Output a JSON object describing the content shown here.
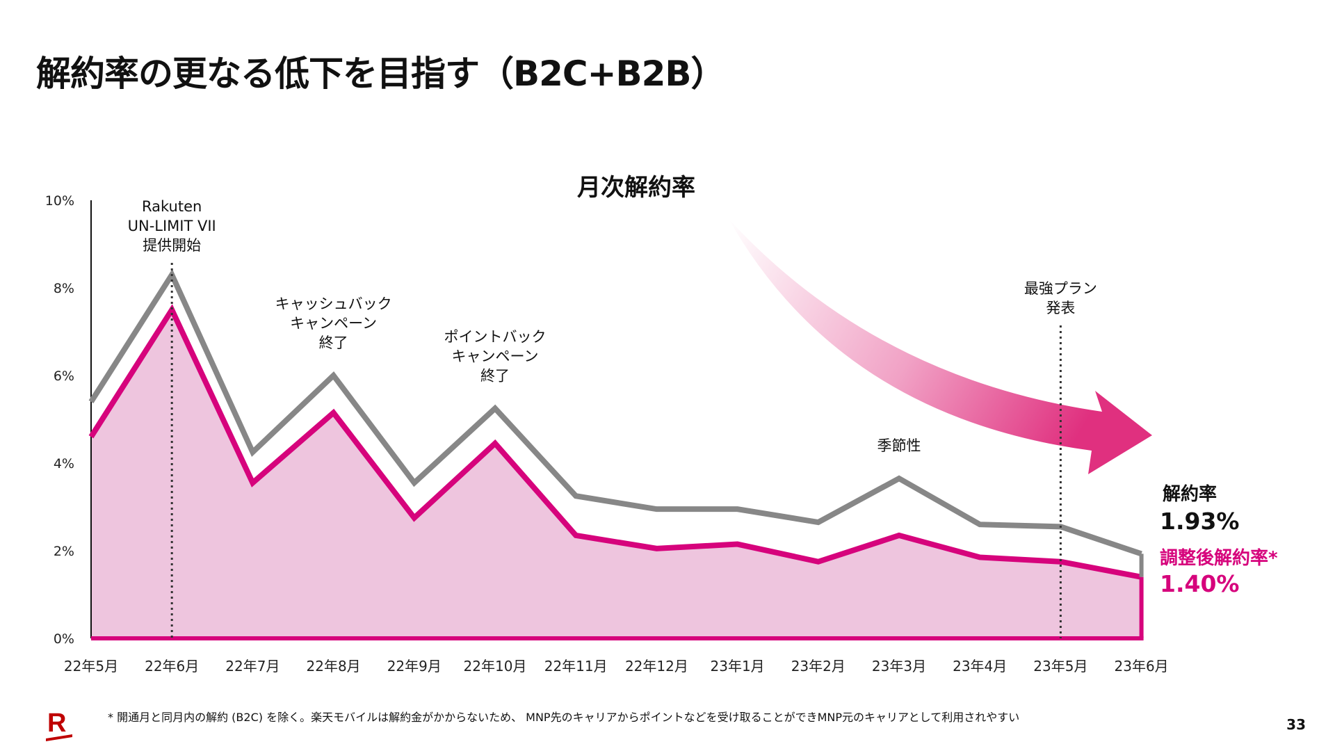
{
  "title": "解約率の更なる低下を目指す（B2C+B2B）",
  "footnote": "* 開通月と同月内の解約 (B2C) を除く。楽天モバイルは解約金がかからないため、 MNP先のキャリアからポイントなどを受け取ることができMNP元のキャリアとして利用されやすい",
  "page_number": "33",
  "logo_letter": "R",
  "colors": {
    "gray_series": "#878787",
    "pink_series": "#d6037c",
    "area_fill": "#eec5de",
    "arrow": "#e0307f"
  },
  "metrics": {
    "churn_label": "解約率",
    "churn_value": "1.93%",
    "adjusted_label": "調整後解約率*",
    "adjusted_value": "1.40%"
  },
  "chart_data": {
    "type": "line",
    "title": "月次解約率",
    "categories": [
      "22年5月",
      "22年6月",
      "22年7月",
      "22年8月",
      "22年9月",
      "22年10月",
      "22年11月",
      "22年12月",
      "23年1月",
      "23年2月",
      "23年3月",
      "23年4月",
      "23年5月",
      "23年6月"
    ],
    "series": [
      {
        "name": "解約率",
        "color": "#878787",
        "values": [
          5.4,
          8.3,
          4.25,
          6.0,
          3.55,
          5.25,
          3.25,
          2.95,
          2.95,
          2.65,
          3.65,
          2.6,
          2.55,
          1.93
        ]
      },
      {
        "name": "調整後解約率*",
        "color": "#d6037c",
        "values": [
          4.6,
          7.5,
          3.55,
          5.15,
          2.75,
          4.45,
          2.35,
          2.05,
          2.15,
          1.75,
          2.35,
          1.85,
          1.75,
          1.4
        ]
      }
    ],
    "yticks": [
      "0%",
      "2%",
      "4%",
      "6%",
      "8%",
      "10%"
    ],
    "ylim": [
      0,
      10
    ],
    "annotations": [
      {
        "index": 1,
        "lines": [
          "Rakuten",
          "UN-LIMIT VII",
          "提供開始"
        ],
        "dotted_line": true
      },
      {
        "index": 3,
        "lines": [
          "キャッシュバック",
          "キャンペーン",
          "終了"
        ],
        "dotted_line": false
      },
      {
        "index": 5,
        "lines": [
          "ポイントバック",
          "キャンペーン",
          "終了"
        ],
        "dotted_line": false
      },
      {
        "index": 10,
        "lines": [
          "季節性"
        ],
        "dotted_line": false
      },
      {
        "index": 12,
        "lines": [
          "最強プラン",
          "発表"
        ],
        "dotted_line": true
      }
    ]
  }
}
